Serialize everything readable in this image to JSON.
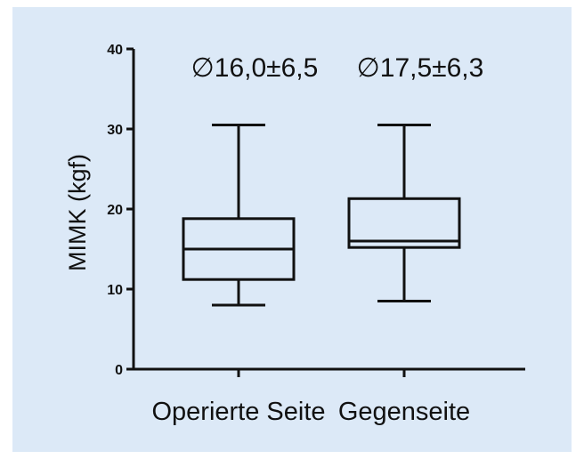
{
  "background_color": "#dce9f7",
  "chart_data": {
    "type": "boxplot",
    "ylabel": "MIMK (kgf)",
    "ylim": [
      0,
      40
    ],
    "yticks": [
      0,
      10,
      20,
      30,
      40
    ],
    "categories": [
      "Operierte Seite",
      "Gegenseite"
    ],
    "boxes": [
      {
        "min": 8.0,
        "q1": 11.2,
        "median": 15.0,
        "q3": 18.8,
        "max": 30.5
      },
      {
        "min": 8.5,
        "q1": 15.2,
        "median": 16.0,
        "q3": 21.3,
        "max": 30.5
      }
    ],
    "annotations": [
      "∅16,0±6,5",
      "∅17,5±6,3"
    ],
    "grid": false
  }
}
